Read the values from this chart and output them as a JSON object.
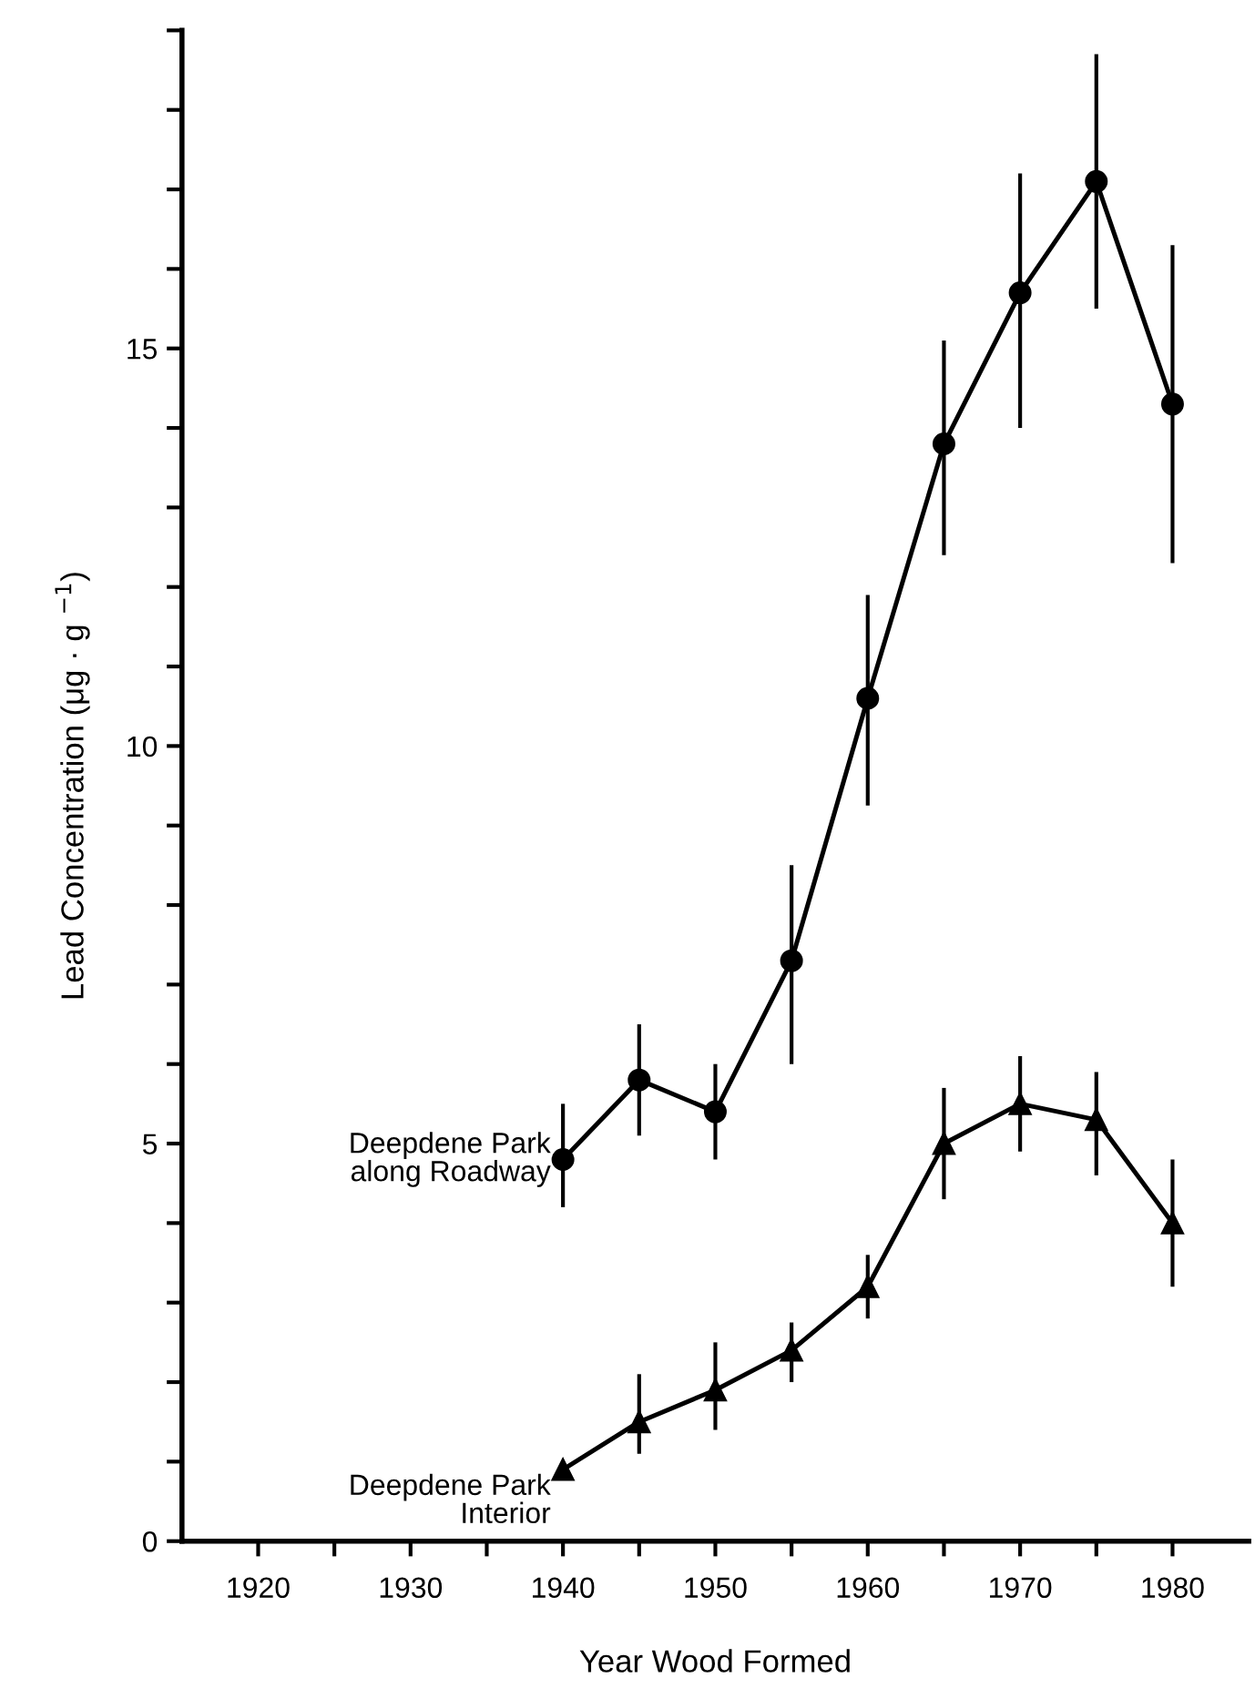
{
  "chart_data": {
    "type": "line",
    "xlabel": "Year Wood Formed",
    "ylabel": "Lead Concentration (μg · g $^{−1}$)",
    "x": [
      1940,
      1945,
      1950,
      1955,
      1960,
      1965,
      1970,
      1975,
      1980
    ],
    "series": [
      {
        "name": "Deepdene Park along Roadway",
        "color": "#000000",
        "marker": "circle",
        "values": [
          4.8,
          5.8,
          5.4,
          7.3,
          10.6,
          13.8,
          15.7,
          17.1,
          14.3
        ],
        "errors": [
          [
            4.2,
            5.5
          ],
          [
            5.1,
            6.5
          ],
          [
            4.8,
            6.0
          ],
          [
            6.0,
            8.5
          ],
          [
            9.25,
            11.9
          ],
          [
            12.4,
            15.1
          ],
          [
            14.0,
            17.2
          ],
          [
            15.5,
            18.7
          ],
          [
            12.3,
            16.3
          ]
        ]
      },
      {
        "name": "Deepdene Park Interior",
        "color": "#000000",
        "marker": "triangle",
        "values": [
          0.9,
          1.5,
          1.9,
          2.4,
          3.2,
          5.0,
          5.5,
          5.3,
          4.0
        ],
        "errors": [
          null,
          [
            1.1,
            2.1
          ],
          [
            1.4,
            2.5
          ],
          [
            2.0,
            2.75
          ],
          [
            2.8,
            3.6
          ],
          [
            4.3,
            5.7
          ],
          [
            4.9,
            6.1
          ],
          [
            4.6,
            5.9
          ],
          [
            3.2,
            4.8
          ]
        ]
      }
    ],
    "xlim": [
      1915,
      1985
    ],
    "ylim": [
      0,
      19
    ],
    "xticks": [
      1920,
      {
        "value": 1925,
        "label": null
      },
      1930,
      {
        "value": 1935,
        "label": null
      },
      1940,
      {
        "value": 1945,
        "label": null
      },
      1950,
      {
        "value": 1955,
        "label": null
      },
      1960,
      {
        "value": 1965,
        "label": null
      },
      1970,
      {
        "value": 1975,
        "label": null
      },
      1980
    ],
    "yticks": [
      0,
      {
        "value": 1,
        "label": null
      },
      {
        "value": 2,
        "label": null
      },
      {
        "value": 3,
        "label": null
      },
      {
        "value": 4,
        "label": null
      },
      5,
      {
        "value": 6,
        "label": null
      },
      {
        "value": 7,
        "label": null
      },
      {
        "value": 8,
        "label": null
      },
      {
        "value": 9,
        "label": null
      },
      10,
      {
        "value": 11,
        "label": null
      },
      {
        "value": 12,
        "label": null
      },
      {
        "value": 13,
        "label": null
      },
      {
        "value": 14,
        "label": null
      },
      15,
      {
        "value": 16,
        "label": null
      },
      {
        "value": 17,
        "label": null
      },
      {
        "value": 18,
        "label": null
      },
      {
        "value": 19,
        "label": null
      }
    ],
    "line_style": "solid",
    "grid": false,
    "legend": false
  }
}
